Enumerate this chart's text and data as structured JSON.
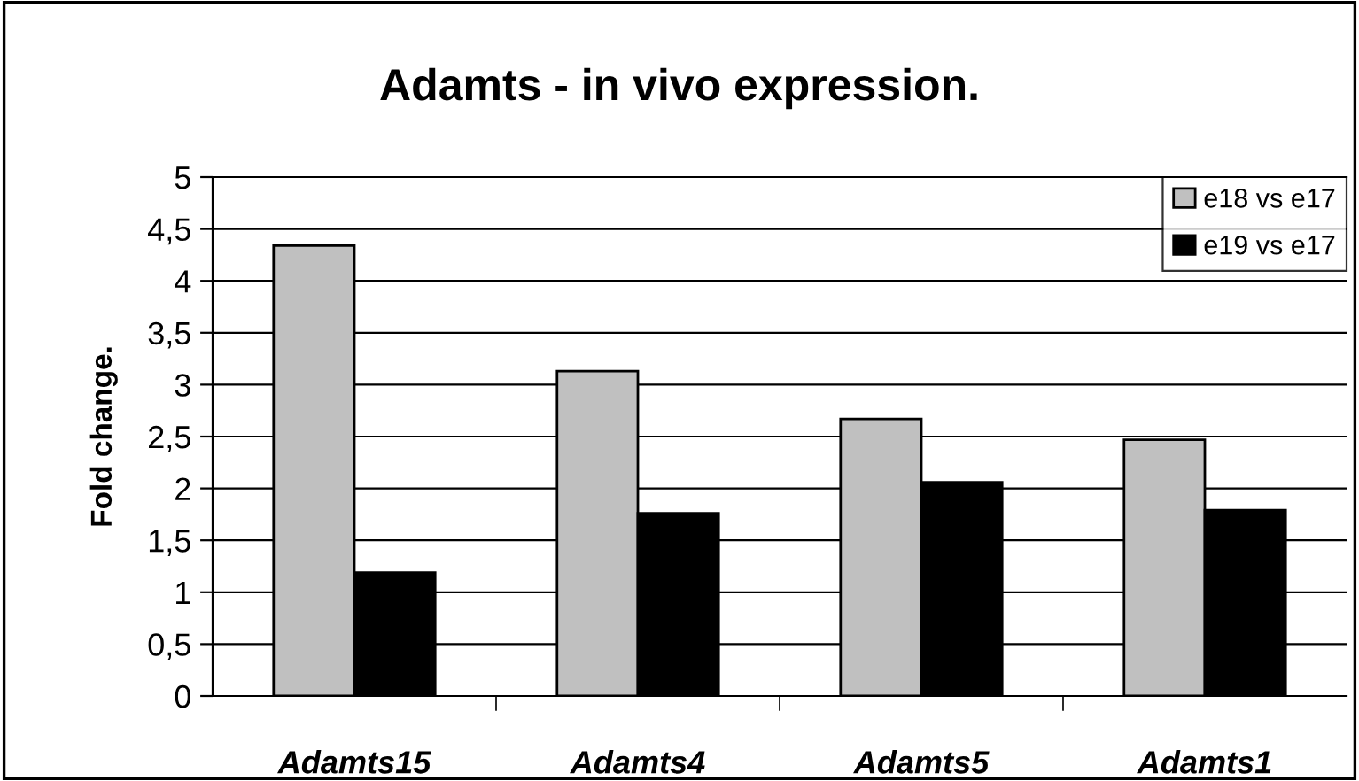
{
  "chart_data": {
    "type": "bar",
    "title": "Adamts - in vivo expression.",
    "ylabel": "Fold change.",
    "categories": [
      "Adamts15",
      "Adamts4",
      "Adamts5",
      "Adamts1"
    ],
    "series": [
      {
        "name": "e18 vs e17",
        "color": "#c0c0c0",
        "values": [
          4.34,
          3.13,
          2.67,
          2.47
        ]
      },
      {
        "name": "e19 vs e17",
        "color": "#000000",
        "values": [
          1.19,
          1.76,
          2.06,
          1.79
        ]
      }
    ],
    "ylim": [
      0,
      5
    ],
    "yticks": [
      0,
      {
        "value": 0.5,
        "label": "0,5"
      },
      1,
      {
        "value": 1.5,
        "label": "1,5"
      },
      2,
      {
        "value": 2.5,
        "label": "2,5"
      },
      3,
      {
        "value": 3.5,
        "label": "3,5"
      },
      4,
      {
        "value": 4.5,
        "label": "4,5"
      },
      5
    ],
    "grid": "y",
    "legend": "top right"
  }
}
